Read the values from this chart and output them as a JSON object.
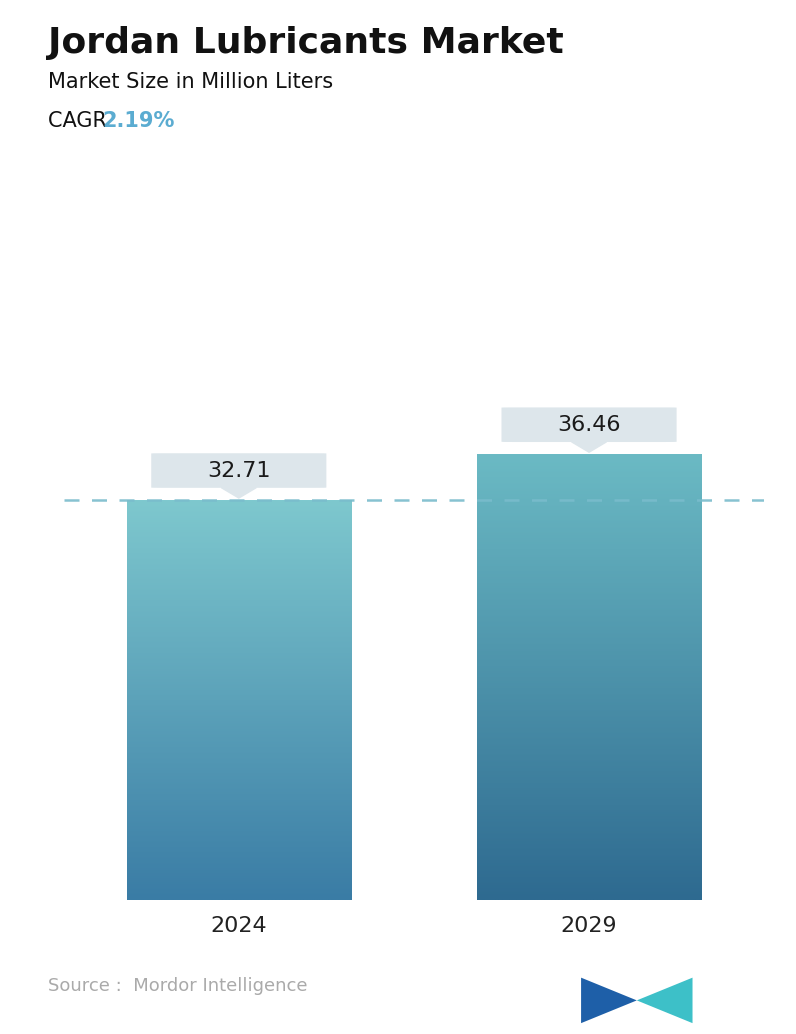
{
  "title": "Jordan Lubricants Market",
  "subtitle": "Market Size in Million Liters",
  "cagr_label": "CAGR ",
  "cagr_value": "2.19%",
  "cagr_color": "#5BACD1",
  "categories": [
    "2024",
    "2029"
  ],
  "values": [
    32.71,
    36.46
  ],
  "bar_top_colors": [
    "#7EC8CE",
    "#6BBAC4"
  ],
  "bar_bottom_colors": [
    "#3A7CA5",
    "#2E6A90"
  ],
  "dashed_line_color": "#7ABCCC",
  "annotation_bg_color": "#DDE6EB",
  "annotation_font_size": 16,
  "title_fontsize": 26,
  "subtitle_fontsize": 15,
  "cagr_fontsize": 15,
  "xlabel_fontsize": 16,
  "source_text": "Source :  Mordor Intelligence",
  "source_fontsize": 13,
  "source_color": "#aaaaaa",
  "background_color": "#FFFFFF",
  "ylim": [
    0,
    44
  ],
  "bar_width": 0.32
}
